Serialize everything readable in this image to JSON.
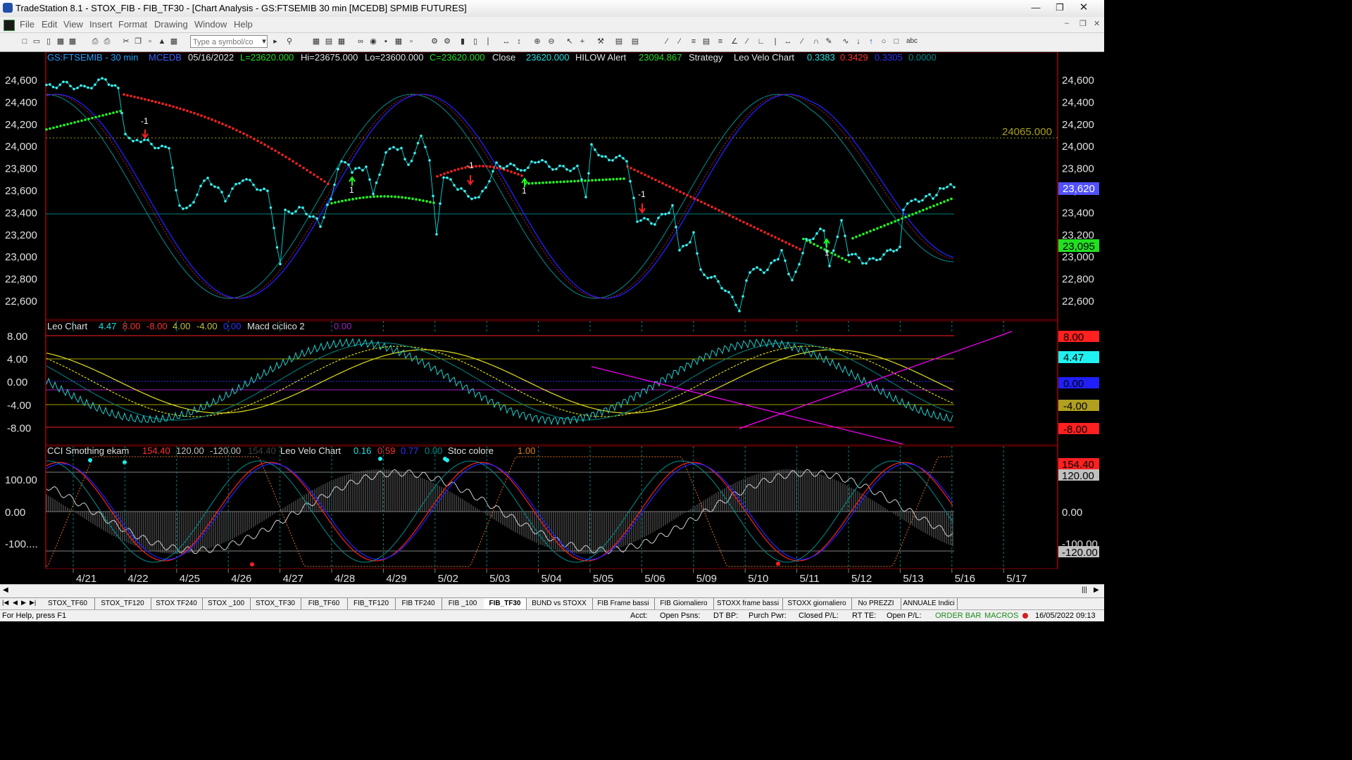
{
  "window": {
    "title": "TradeStation 8.1 - STOX_FIB - FIB_TF30 - [Chart Analysis - GS:FTSEMIB  30 min  [MCEDB] SPMIB FUTURES]",
    "buttons": [
      "minimize-icon",
      "restore-icon",
      "close-icon"
    ]
  },
  "menu": {
    "items": [
      "File",
      "Edit",
      "View",
      "Insert",
      "Format",
      "Drawing",
      "Window",
      "Help"
    ]
  },
  "toolbar": {
    "symbol_placeholder": "Type a symbol/co",
    "abc_label": "abc"
  },
  "price_panel": {
    "symbol": "GS:FTSEMIB - 30 min",
    "exchange": "MCEDB",
    "date": "05/16/2022",
    "last": "L=23620.000",
    "high": "Hi=23675.000",
    "low": "Lo=23600.000",
    "close_c": "C=23620.000",
    "close_label": "Close",
    "close_val": "23620.000",
    "hilow_label": "HILOW Alert",
    "hilow_val": "23094.867",
    "strategy_label": "Strategy",
    "velo_label": "Leo Velo Chart",
    "velo_v1": "0.3383",
    "velo_v2": "0.3429",
    "velo_v3": "0.3305",
    "velo_v4": "0.0000",
    "y_ticks": [
      "24,600",
      "24,400",
      "24,200",
      "24,000",
      "23,800",
      "23,600",
      "23,400",
      "23,200",
      "23,000",
      "22,800",
      "22,600"
    ],
    "hline_label": "24065.000",
    "price_tag": "23,620",
    "hilow_tag": "23,095",
    "signal_labels": [
      "-1",
      "1",
      "-1",
      "1",
      "-1",
      "1"
    ]
  },
  "leo_panel": {
    "title": "Leo Chart",
    "v1": "4.47",
    "v2": "8.00",
    "v3": "-8.00",
    "v4": "4.00",
    "v5": "-4.00",
    "v6": "0.00",
    "macd_label": "Macd ciclico 2",
    "macd_val": "0.00",
    "y_ticks": [
      "8.00",
      "4.00",
      "0.00",
      "-4.00",
      "-8.00"
    ],
    "tags": [
      "8.00",
      "4.47",
      "0.00",
      "-4.00",
      "-8.00"
    ]
  },
  "cci_panel": {
    "title": "CCI Smothing ekam",
    "v1": "154.40",
    "v2": "120.00",
    "v3": "-120.00",
    "v4": "154.40",
    "velo_label": "Leo Velo Chart",
    "velo_v1": "0.16",
    "velo_v2": "0.59",
    "velo_v3": "0.77",
    "velo_v4": "0.00",
    "stoc_label": "Stoc colore",
    "stoc_val": "1.00",
    "y_ticks": [
      "100.00",
      "0.00",
      "-100...."
    ],
    "tags": [
      "154.40",
      "120.00",
      "0.00",
      "-100.00",
      "-120.00"
    ]
  },
  "x_axis": {
    "labels": [
      "4/21",
      "4/22",
      "4/25",
      "4/26",
      "4/27",
      "4/28",
      "4/29",
      "5/02",
      "5/03",
      "5/04",
      "5/05",
      "5/06",
      "5/09",
      "5/10",
      "5/11",
      "5/12",
      "5/13",
      "5/16",
      "5/17"
    ]
  },
  "workspace_tabs": [
    "STOX_TF60",
    "STOX_TF120",
    "STOX TF240",
    "STOX _100",
    "STOX_TF30",
    "FIB_TF60",
    "FIB_TF120",
    "FIB TF240",
    "FIB _100",
    "FIB_TF30",
    "BUND vs STOXX",
    "FIB Frame bassi",
    "FIB Giornaliero",
    "STOXX frame bassi",
    "STOXX giornaliero",
    "No PREZZI",
    "ANNUALE Indici"
  ],
  "active_tab": "FIB_TF30",
  "status": {
    "help": "For Help, press F1",
    "acct": "Acct:",
    "open_psns": "Open Psns:",
    "dt_bp": "DT BP:",
    "purch_pwr": "Purch Pwr:",
    "closed_pl": "Closed P/L:",
    "rt_te": "RT TE:",
    "open_pl": "Open P/L:",
    "order_bar": "ORDER BAR",
    "macros": "MACROS",
    "datetime": "16/05/2022 09:13"
  },
  "colors": {
    "price": "#00e5e5",
    "red_line": "#ff2020",
    "green_line": "#20ff20",
    "blue_line": "#2020ff",
    "teal_line": "#009090",
    "yellow": "#ffff00",
    "magenta": "#ff00ff",
    "olive_label": "#d8c020"
  }
}
